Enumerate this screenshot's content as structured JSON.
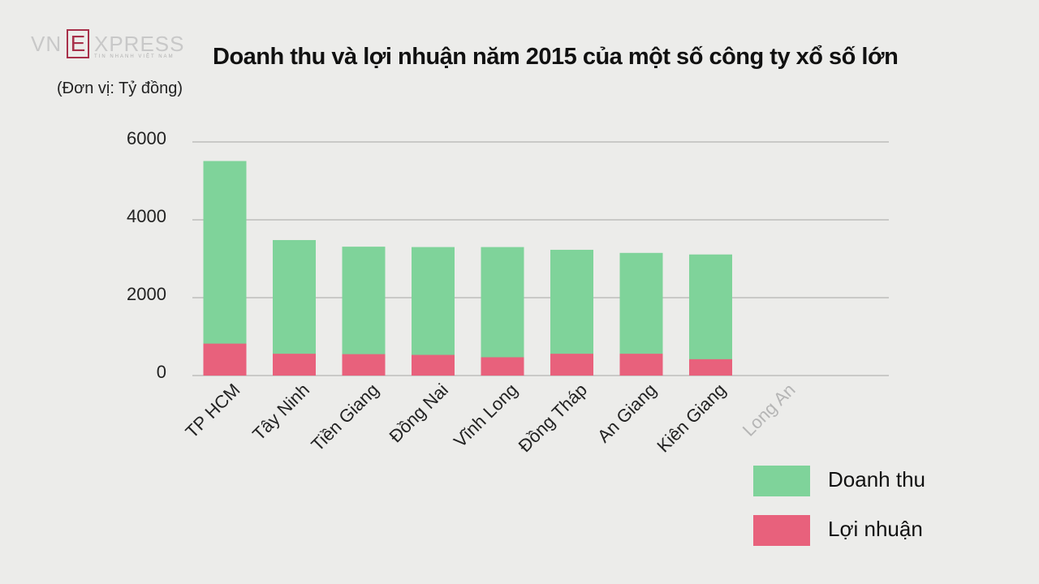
{
  "brand": {
    "vn": "VN",
    "e": "E",
    "xpress": "XPRESS",
    "tagline": "TIN NHANH VIỆT NAM"
  },
  "title": "Doanh thu và lợi nhuận năm 2015 của một số công ty xổ số lớn",
  "unit": "(Đơn vị: Tỷ đồng)",
  "colors": {
    "revenue": "#7fd39a",
    "profit": "#e8617c",
    "grid": "#c9c9c7",
    "axis_text": "#222222",
    "faded_label": "#b5b5b5"
  },
  "chart_data": {
    "type": "bar",
    "stacked": true,
    "title": "Doanh thu và lợi nhuận năm 2015 của một số công ty xổ số lớn",
    "ylabel": "(Đơn vị: Tỷ đồng)",
    "ylim": [
      0,
      6000
    ],
    "yticks": [
      0,
      2000,
      4000,
      6000
    ],
    "grid": true,
    "legend_position": "bottom-right",
    "categories": [
      "TP HCM",
      "Tây Ninh",
      "Tiền Giang",
      "Đồng Nai",
      "Vĩnh Long",
      "Đồng Tháp",
      "An Giang",
      "Kiên Giang",
      "Long An"
    ],
    "series": [
      {
        "name": "Doanh thu",
        "values": [
          5510,
          3480,
          3310,
          3300,
          3300,
          3230,
          3150,
          3110,
          null
        ]
      },
      {
        "name": "Lợi nhuận",
        "values": [
          820,
          560,
          550,
          530,
          470,
          560,
          560,
          420,
          null
        ]
      }
    ]
  }
}
